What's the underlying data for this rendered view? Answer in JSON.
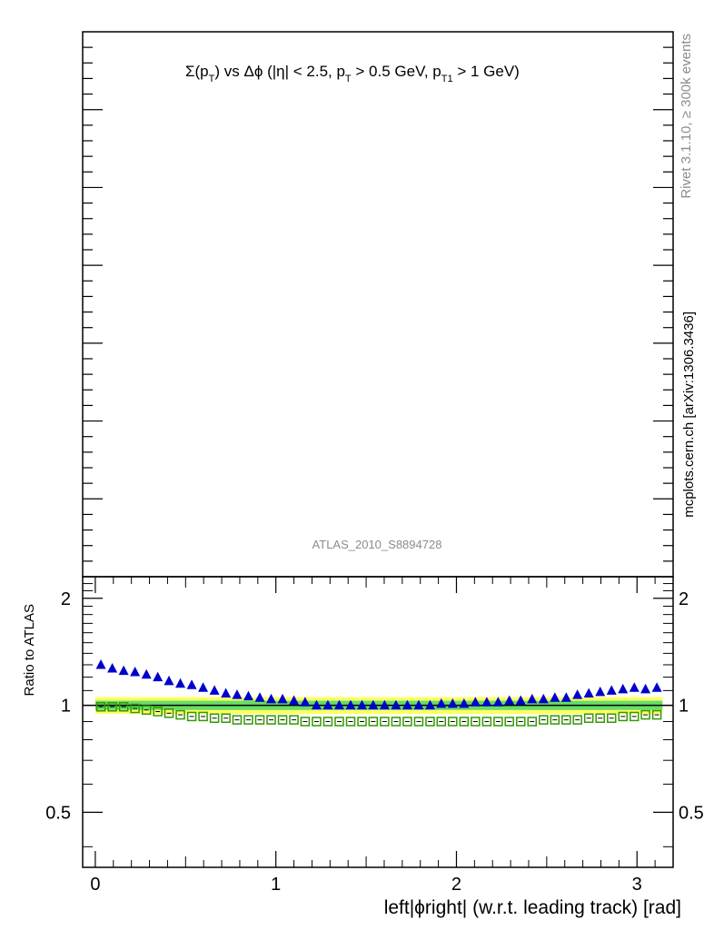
{
  "chart_data": [
    {
      "panel": "main",
      "type": "scatter",
      "title_parts": {
        "sigma": "Σ(p",
        "sub_T1": "T",
        "mid1": ") vs Δϕ (|η| < 2.5, p",
        "sub_T2": "T",
        "mid2": " > 0.5 GeV, p",
        "sub_T3": "T1",
        "end": " > 1 GeV)"
      },
      "watermark": "ATLAS_2010_S8894728",
      "series": []
    },
    {
      "panel": "ratio",
      "type": "scatter",
      "ylabel": "Ratio to ATLAS",
      "xlabel": "left|ϕright| (w.r.t. leading track) [rad]",
      "xlim": [
        -0.07,
        3.2
      ],
      "ylim": [
        0.35,
        2.3
      ],
      "y_scale": "log",
      "xticks": [
        "0",
        "1",
        "2",
        "3"
      ],
      "yticks": [
        {
          "v": 0.5,
          "label": "0.5"
        },
        {
          "v": 1,
          "label": "1"
        },
        {
          "v": 2,
          "label": "2"
        }
      ],
      "reference_line": 1,
      "bands": {
        "inner": {
          "half": 0.03,
          "color": "#66dd66"
        },
        "outer": {
          "half": 0.055,
          "color": "#ffff66"
        }
      },
      "x": [
        0.031,
        0.094,
        0.157,
        0.22,
        0.283,
        0.346,
        0.408,
        0.471,
        0.534,
        0.597,
        0.66,
        0.723,
        0.785,
        0.848,
        0.911,
        0.974,
        1.037,
        1.1,
        1.162,
        1.225,
        1.288,
        1.351,
        1.414,
        1.477,
        1.539,
        1.602,
        1.665,
        1.728,
        1.791,
        1.854,
        1.916,
        1.979,
        2.042,
        2.105,
        2.168,
        2.231,
        2.293,
        2.356,
        2.419,
        2.482,
        2.545,
        2.608,
        2.67,
        2.733,
        2.796,
        2.859,
        2.922,
        2.985,
        3.047,
        3.11
      ],
      "series": [
        {
          "color": "#0000cc",
          "marker": "triangle",
          "values": [
            1.3,
            1.27,
            1.25,
            1.24,
            1.22,
            1.2,
            1.17,
            1.15,
            1.14,
            1.12,
            1.1,
            1.08,
            1.07,
            1.06,
            1.05,
            1.04,
            1.04,
            1.03,
            1.02,
            1.0,
            1.0,
            1.0,
            1.0,
            1.0,
            1.0,
            1.0,
            1.0,
            1.0,
            1.0,
            1.0,
            1.01,
            1.01,
            1.01,
            1.02,
            1.02,
            1.02,
            1.03,
            1.03,
            1.04,
            1.04,
            1.05,
            1.05,
            1.07,
            1.08,
            1.09,
            1.1,
            1.11,
            1.12,
            1.11,
            1.12
          ]
        },
        {
          "color": "#339900",
          "marker": "open-square",
          "values": [
            0.99,
            0.99,
            0.99,
            0.98,
            0.97,
            0.96,
            0.95,
            0.94,
            0.93,
            0.93,
            0.92,
            0.92,
            0.91,
            0.91,
            0.91,
            0.91,
            0.91,
            0.91,
            0.9,
            0.9,
            0.9,
            0.9,
            0.9,
            0.9,
            0.9,
            0.9,
            0.9,
            0.9,
            0.9,
            0.9,
            0.9,
            0.9,
            0.9,
            0.9,
            0.9,
            0.9,
            0.9,
            0.9,
            0.9,
            0.91,
            0.91,
            0.91,
            0.91,
            0.92,
            0.92,
            0.92,
            0.93,
            0.93,
            0.94,
            0.94
          ]
        }
      ]
    }
  ],
  "side_labels": {
    "rivet": "Rivet 3.1.10, ≥ 300k events",
    "mcplots": "mcplots.cern.ch [arXiv:1306.3436]"
  }
}
